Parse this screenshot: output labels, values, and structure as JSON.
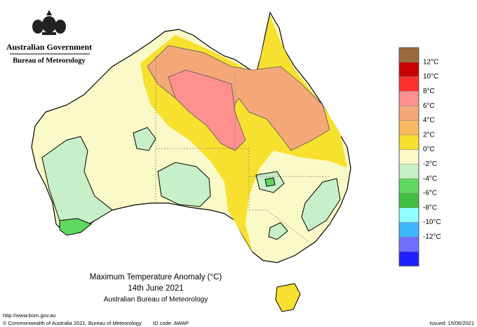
{
  "header": {
    "government": "Australian Government",
    "agency": "Bureau of Meteorology"
  },
  "legend": {
    "labels": [
      "12°C",
      "10°C",
      "8°C",
      "6°C",
      "4°C",
      "2°C",
      "0°C",
      "-2°C",
      "-4°C",
      "-6°C",
      "-8°C",
      "-10°C",
      "-12°C"
    ],
    "colors": [
      "#9a6a3c",
      "#c80000",
      "#ff3030",
      "#ff9090",
      "#f4a878",
      "#f8b860",
      "#f8e030",
      "#fafac8",
      "#c8f0c8",
      "#60d860",
      "#40c040",
      "#90ffff",
      "#40b8ff",
      "#7070ff",
      "#2020ff"
    ]
  },
  "caption": {
    "title": "Maximum Temperature Anomaly (°C)",
    "date": "14th June 2021",
    "source": "Australian Bureau of Meteorology"
  },
  "footer": {
    "url": "http://www.bom.gov.au",
    "copyright": "© Commonwealth of Australia 2021, Bureau of Meteorology",
    "id_code": "ID code: AWAP",
    "issued": "Issued: 15/06/2021"
  }
}
